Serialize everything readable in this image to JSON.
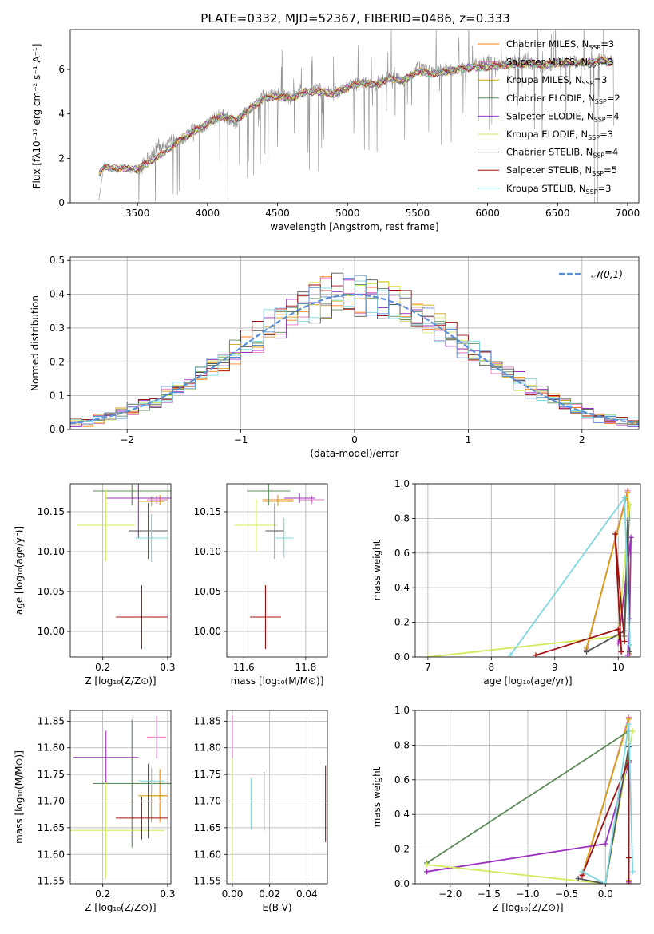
{
  "title": "PLATE=0332, MJD=52367, FIBERID=0486, z=0.333",
  "colors": [
    "#ff7f0e",
    "#e377c2",
    "#d4a017",
    "#5b8a5b",
    "#9b30c0",
    "#d4ea5c",
    "#555555",
    "#a01010",
    "#7fd8e0",
    "#909090",
    "#5b8fd4"
  ],
  "chart_data": [
    {
      "id": "spectrum",
      "type": "line",
      "xlabel": "wavelength [Angstrom, rest frame]",
      "ylabel": "Flux [fλ10⁻¹⁷ erg cm⁻² s⁻¹ A⁻¹]",
      "xlim": [
        3020,
        7080
      ],
      "ylim": [
        0,
        7.8
      ],
      "xticks": [
        3500,
        4000,
        4500,
        5000,
        5500,
        6000,
        6500,
        7000
      ],
      "yticks": [
        0,
        2,
        4,
        6
      ],
      "grid": false,
      "legend": "upper right",
      "data_x": [
        3225,
        3260,
        3300,
        3350,
        3400,
        3450,
        3500,
        3550,
        3600,
        3650,
        3700,
        3750,
        3800,
        3850,
        3900,
        3950,
        4000,
        4100,
        4200,
        4300,
        4400,
        4500,
        4600,
        4700,
        4800,
        4900,
        5000,
        5100,
        5200,
        5300,
        5400,
        5500,
        5600,
        5700,
        5800,
        5900,
        6000,
        6100,
        6200,
        6300,
        6400,
        6500,
        6600,
        6700,
        6800,
        6900
      ],
      "data_y": [
        0.2,
        1.6,
        1.5,
        1.55,
        1.6,
        1.5,
        1.45,
        1.8,
        2.2,
        2.6,
        2.4,
        2.9,
        2.7,
        3.1,
        3.4,
        3.2,
        3.6,
        4.0,
        3.6,
        4.3,
        4.8,
        4.9,
        4.7,
        5.0,
        5.1,
        4.9,
        5.2,
        5.4,
        5.3,
        5.7,
        5.5,
        6.1,
        5.9,
        6.0,
        6.0,
        6.2,
        6.3,
        6.2,
        6.4,
        6.3,
        6.1,
        6.3,
        6.4,
        6.2,
        6.5,
        6.3
      ],
      "model_x": [
        3225,
        3260,
        3300,
        3400,
        3500,
        3600,
        3700,
        3800,
        3900,
        4000,
        4100,
        4200,
        4300,
        4400,
        4500,
        4600,
        4700,
        4800,
        4900,
        5000,
        5100,
        5200,
        5300,
        5400,
        5500,
        5600,
        5700,
        5800,
        5900,
        6000,
        6100,
        6200,
        6300,
        6400,
        6500,
        6600,
        6700,
        6800,
        6900
      ],
      "model_y": [
        1.3,
        1.65,
        1.55,
        1.55,
        1.5,
        1.9,
        2.3,
        2.8,
        3.2,
        3.6,
        3.9,
        3.7,
        4.2,
        4.7,
        4.8,
        4.7,
        5.0,
        5.0,
        4.9,
        5.2,
        5.4,
        5.3,
        5.6,
        5.5,
        5.9,
        5.8,
        5.9,
        6.0,
        6.1,
        6.1,
        6.2,
        6.2,
        6.3,
        6.2,
        6.3,
        6.3,
        6.3,
        6.4,
        6.3
      ],
      "series": [
        {
          "name": "Chabrier MILES, N",
          "sub": "SSP",
          "tail": "=3"
        },
        {
          "name": "Salpeter MILES, N",
          "sub": "SSP",
          "tail": "=3"
        },
        {
          "name": "Kroupa MILES, N",
          "sub": "SSP",
          "tail": "=3"
        },
        {
          "name": "Chabrier ELODIE, N",
          "sub": "SSP",
          "tail": "=2"
        },
        {
          "name": "Salpeter ELODIE, N",
          "sub": "SSP",
          "tail": "=4"
        },
        {
          "name": "Kroupa ELODIE, N",
          "sub": "SSP",
          "tail": "=3"
        },
        {
          "name": "Chabrier STELIB, N",
          "sub": "SSP",
          "tail": "=4"
        },
        {
          "name": "Salpeter STELIB, N",
          "sub": "SSP",
          "tail": "=5"
        },
        {
          "name": "Kroupa STELIB, N",
          "sub": "SSP",
          "tail": "=3"
        }
      ]
    },
    {
      "id": "residuals",
      "type": "line",
      "xlabel": "(data-model)/error",
      "ylabel": "Normed distribution",
      "xlim": [
        -2.5,
        2.5
      ],
      "ylim": [
        0,
        0.51
      ],
      "xticks": [
        -2,
        -1,
        0,
        1,
        2
      ],
      "yticks": [
        0.0,
        0.1,
        0.2,
        0.3,
        0.4,
        0.5
      ],
      "grid": true,
      "legend": "upper right",
      "legend_label": "𝒩(0,1)",
      "bin_width": 0.1
    },
    {
      "id": "age_vs_Z",
      "type": "scatter",
      "xlabel": "Z [log₁₀(Z/Z⊙)]",
      "ylabel": "age  [log₁₀(age/yr)]",
      "xlim": [
        0.15,
        0.305
      ],
      "ylim": [
        9.968,
        10.185
      ],
      "xticks": [
        0.2,
        0.3
      ],
      "yticks": [
        10.0,
        10.05,
        10.1,
        10.15
      ],
      "grid": true,
      "points": [
        {
          "x": 0.288,
          "xerr": 0.012,
          "y": 10.165,
          "yerr": 0.006,
          "c": 0
        },
        {
          "x": 0.283,
          "xerr": 0.015,
          "y": 10.165,
          "yerr": 0.005,
          "c": 1
        },
        {
          "x": 0.275,
          "xerr": 0.02,
          "y": 10.163,
          "yerr": 0.006,
          "c": 2
        },
        {
          "x": 0.245,
          "xerr": 0.06,
          "y": 10.176,
          "yerr": 0.018,
          "c": 3
        },
        {
          "x": 0.255,
          "xerr": 0.05,
          "y": 10.167,
          "yerr": 0.05,
          "c": 4
        },
        {
          "x": 0.205,
          "xerr": 0.045,
          "y": 10.133,
          "yerr": 0.045,
          "c": 5
        },
        {
          "x": 0.27,
          "xerr": 0.03,
          "y": 10.126,
          "yerr": 0.035,
          "c": 6
        },
        {
          "x": 0.26,
          "xerr": 0.04,
          "y": 10.018,
          "yerr": 0.04,
          "c": 7
        },
        {
          "x": 0.275,
          "xerr": 0.025,
          "y": 10.117,
          "yerr": 0.03,
          "c": 8
        }
      ]
    },
    {
      "id": "age_vs_mass",
      "type": "scatter",
      "xlabel": "mass [log₁₀(M/M⊙)]",
      "ylabel": "",
      "xlim": [
        11.545,
        11.87
      ],
      "ylim": [
        9.968,
        10.185
      ],
      "xticks": [
        11.6,
        11.8
      ],
      "yticks": [
        10.0,
        10.05,
        10.1,
        10.15
      ],
      "grid": true,
      "points": [
        {
          "x": 11.71,
          "xerr": 0.05,
          "y": 10.165,
          "yerr": 0.006,
          "c": 0
        },
        {
          "x": 11.82,
          "xerr": 0.04,
          "y": 10.165,
          "yerr": 0.005,
          "c": 1
        },
        {
          "x": 11.71,
          "xerr": 0.05,
          "y": 10.163,
          "yerr": 0.006,
          "c": 2
        },
        {
          "x": 11.68,
          "xerr": 0.07,
          "y": 10.176,
          "yerr": 0.018,
          "c": 3
        },
        {
          "x": 11.78,
          "xerr": 0.05,
          "y": 10.167,
          "yerr": 0.006,
          "c": 4
        },
        {
          "x": 11.64,
          "xerr": 0.07,
          "y": 10.133,
          "yerr": 0.033,
          "c": 5
        },
        {
          "x": 11.7,
          "xerr": 0.03,
          "y": 10.126,
          "yerr": 0.035,
          "c": 6
        },
        {
          "x": 11.67,
          "xerr": 0.05,
          "y": 10.018,
          "yerr": 0.04,
          "c": 7
        },
        {
          "x": 11.73,
          "xerr": 0.03,
          "y": 10.117,
          "yerr": 0.025,
          "c": 8
        }
      ]
    },
    {
      "id": "weight_vs_age",
      "type": "line",
      "xlabel": "age  [log₁₀(age/yr)]",
      "ylabel": "mass weight",
      "xlim": [
        6.8,
        10.35
      ],
      "ylim": [
        0,
        1.0
      ],
      "xticks": [
        7,
        8,
        9,
        10
      ],
      "yticks": [
        0.0,
        0.2,
        0.4,
        0.6,
        0.8,
        1.0
      ],
      "grid": true,
      "series": [
        {
          "c": 0,
          "x": [
            9.5,
            10.15,
            10.18
          ],
          "y": [
            0.04,
            0.96,
            0.02
          ]
        },
        {
          "c": 1,
          "x": [
            9.5,
            10.15,
            10.18
          ],
          "y": [
            0.04,
            0.96,
            0.02
          ]
        },
        {
          "c": 2,
          "x": [
            9.5,
            10.15,
            10.18
          ],
          "y": [
            0.05,
            0.95,
            0.02
          ]
        },
        {
          "c": 3,
          "x": [
            10.1,
            10.18
          ],
          "y": [
            0.12,
            0.88
          ]
        },
        {
          "c": 4,
          "x": [
            10.0,
            10.2,
            10.18,
            10.15
          ],
          "y": [
            0.08,
            0.69,
            0.22,
            0.01
          ]
        },
        {
          "c": 5,
          "x": [
            7.0,
            10.0,
            10.18
          ],
          "y": [
            0.0,
            0.12,
            0.88
          ]
        },
        {
          "c": 6,
          "x": [
            9.5,
            10.1,
            10.15,
            10.18
          ],
          "y": [
            0.03,
            0.15,
            0.79,
            0.03
          ]
        },
        {
          "c": 7,
          "x": [
            8.7,
            10.0,
            10.05,
            9.95,
            10.1
          ],
          "y": [
            0.01,
            0.16,
            0.03,
            0.71,
            0.09
          ]
        },
        {
          "c": 8,
          "x": [
            8.3,
            10.1,
            10.18
          ],
          "y": [
            0.01,
            0.92,
            0.07
          ]
        }
      ]
    },
    {
      "id": "mass_vs_Z",
      "type": "scatter",
      "xlabel": "Z [log₁₀(Z/Z⊙)]",
      "ylabel": "mass [log₁₀(M/M⊙)]",
      "xlim": [
        0.15,
        0.305
      ],
      "ylim": [
        11.545,
        11.87
      ],
      "xticks": [
        0.2,
        0.3
      ],
      "yticks": [
        11.55,
        11.6,
        11.65,
        11.7,
        11.75,
        11.8,
        11.85
      ],
      "grid": true,
      "points": [
        {
          "x": 0.288,
          "xerr": 0.012,
          "y": 11.71,
          "yerr": 0.05,
          "c": 0
        },
        {
          "x": 0.283,
          "xerr": 0.015,
          "y": 11.82,
          "yerr": 0.04,
          "c": 1
        },
        {
          "x": 0.275,
          "xerr": 0.02,
          "y": 11.71,
          "yerr": 0.05,
          "c": 2
        },
        {
          "x": 0.245,
          "xerr": 0.06,
          "y": 11.733,
          "yerr": 0.12,
          "c": 3
        },
        {
          "x": 0.205,
          "xerr": 0.05,
          "y": 11.782,
          "yerr": 0.05,
          "c": 4
        },
        {
          "x": 0.205,
          "xerr": 0.09,
          "y": 11.645,
          "yerr": 0.09,
          "c": 5
        },
        {
          "x": 0.27,
          "xerr": 0.03,
          "y": 11.7,
          "yerr": 0.07,
          "c": 6
        },
        {
          "x": 0.26,
          "xerr": 0.04,
          "y": 11.668,
          "yerr": 0.04,
          "c": 7
        },
        {
          "x": 0.275,
          "xerr": 0.02,
          "y": 11.738,
          "yerr": 0.025,
          "c": 8
        }
      ]
    },
    {
      "id": "mass_vs_ebv",
      "type": "scatter",
      "xlabel": "E(B-V)",
      "ylabel": "",
      "xlim": [
        -0.003,
        0.051
      ],
      "ylim": [
        11.545,
        11.87
      ],
      "xticks": [
        0.0,
        0.02,
        0.04
      ],
      "yticks": [
        11.55,
        11.6,
        11.65,
        11.7,
        11.75,
        11.8,
        11.85
      ],
      "grid": true,
      "points": [
        {
          "x": 0.0,
          "y": 11.76,
          "yerr": 0.1,
          "c": 4
        },
        {
          "x": 0.0,
          "y": 11.67,
          "yerr": 0.12,
          "c": 5
        },
        {
          "x": 0.0,
          "y": 11.82,
          "yerr": 0.04,
          "c": 1
        },
        {
          "x": 0.01,
          "y": 11.695,
          "yerr": 0.048,
          "c": 8
        },
        {
          "x": 0.017,
          "y": 11.7,
          "yerr": 0.055,
          "c": 6
        },
        {
          "x": 0.05,
          "y": 11.695,
          "yerr": 0.072,
          "c": 7
        }
      ]
    },
    {
      "id": "weight_vs_Z",
      "type": "line",
      "xlabel": "Z [log₁₀(Z/Z⊙)]",
      "ylabel": "mass weight",
      "xlim": [
        -2.45,
        0.45
      ],
      "ylim": [
        0,
        1.0
      ],
      "xticks": [
        -2.0,
        -1.5,
        -1.0,
        -0.5,
        0.0
      ],
      "yticks": [
        0.0,
        0.2,
        0.4,
        0.6,
        0.8,
        1.0
      ],
      "grid": true,
      "series": [
        {
          "c": 0,
          "x": [
            -0.3,
            0.3,
            0.3
          ],
          "y": [
            0.04,
            0.96,
            0.02
          ]
        },
        {
          "c": 1,
          "x": [
            -0.3,
            0.3,
            0.3
          ],
          "y": [
            0.04,
            0.96,
            0.02
          ]
        },
        {
          "c": 2,
          "x": [
            -0.3,
            0.3,
            0.3
          ],
          "y": [
            0.05,
            0.95,
            0.02
          ]
        },
        {
          "c": 3,
          "x": [
            -2.3,
            0.3
          ],
          "y": [
            0.12,
            0.88
          ]
        },
        {
          "c": 4,
          "x": [
            -2.3,
            0.0,
            0.3,
            0.3
          ],
          "y": [
            0.07,
            0.23,
            0.7,
            0.01
          ]
        },
        {
          "c": 5,
          "x": [
            -2.3,
            0.0,
            0.35
          ],
          "y": [
            0.11,
            0.0,
            0.88
          ]
        },
        {
          "c": 6,
          "x": [
            -0.35,
            0.0,
            0.3,
            0.3
          ],
          "y": [
            0.03,
            0.0,
            0.79,
            0.15
          ]
        },
        {
          "c": 7,
          "x": [
            -0.3,
            0.3,
            0.3,
            0.3
          ],
          "y": [
            0.05,
            0.71,
            0.15,
            0.0
          ]
        },
        {
          "c": 8,
          "x": [
            -0.3,
            0.0,
            0.3,
            0.35
          ],
          "y": [
            0.07,
            0.0,
            0.92,
            0.07
          ]
        }
      ]
    }
  ]
}
